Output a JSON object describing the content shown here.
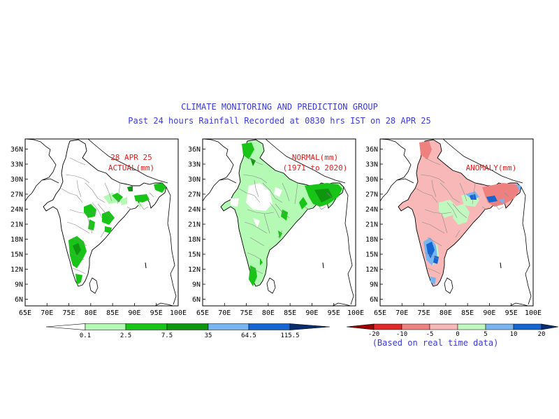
{
  "title": "CLIMATE MONITORING AND PREDICTION GROUP",
  "subtitle": "Past 24 hours Rainfall Recorded at 0830 hrs IST on 28 APR 25",
  "lat_labels": [
    "36N",
    "33N",
    "30N",
    "27N",
    "24N",
    "21N",
    "18N",
    "15N",
    "12N",
    "9N",
    "6N"
  ],
  "lon_labels": [
    "65E",
    "70E",
    "75E",
    "80E",
    "85E",
    "90E",
    "95E",
    "100E"
  ],
  "panels": [
    {
      "name": "actual",
      "label_line1": "28 APR 25",
      "label_line2": "ACTUAL(mm)"
    },
    {
      "name": "normal",
      "label_line1": "NORMAL(mm)",
      "label_line2": "(1971 to 2020)"
    },
    {
      "name": "anomaly",
      "label_line1": "ANOMALY(mm)",
      "label_line2": ""
    }
  ],
  "rain_legend": {
    "ticks": [
      "0.1",
      "2.5",
      "7.5",
      "35",
      "64.5",
      "115.5"
    ],
    "colors": [
      "#ffffff",
      "#b4fab4",
      "#17c417",
      "#0f960f",
      "#78b4f0",
      "#1464d2",
      "#0a2d6e"
    ]
  },
  "anomaly_legend": {
    "ticks": [
      "-20",
      "-10",
      "-5",
      "0",
      "5",
      "10",
      "20"
    ],
    "colors": [
      "#a00000",
      "#e02828",
      "#ee8080",
      "#f8b8b8",
      "#c0f8c0",
      "#78b4f0",
      "#1464d2",
      "#0a2d6e"
    ],
    "note": "(Based on real time data)"
  },
  "colors": {
    "title": "#3a3ad8",
    "annotation": "#e02020",
    "light_green": "#b4fab4",
    "green": "#17c417",
    "dark_green": "#0f960f",
    "light_blue": "#78b4f0",
    "blue": "#1464d2",
    "pink": "#f8b8b8",
    "salmon": "#ee8080"
  }
}
